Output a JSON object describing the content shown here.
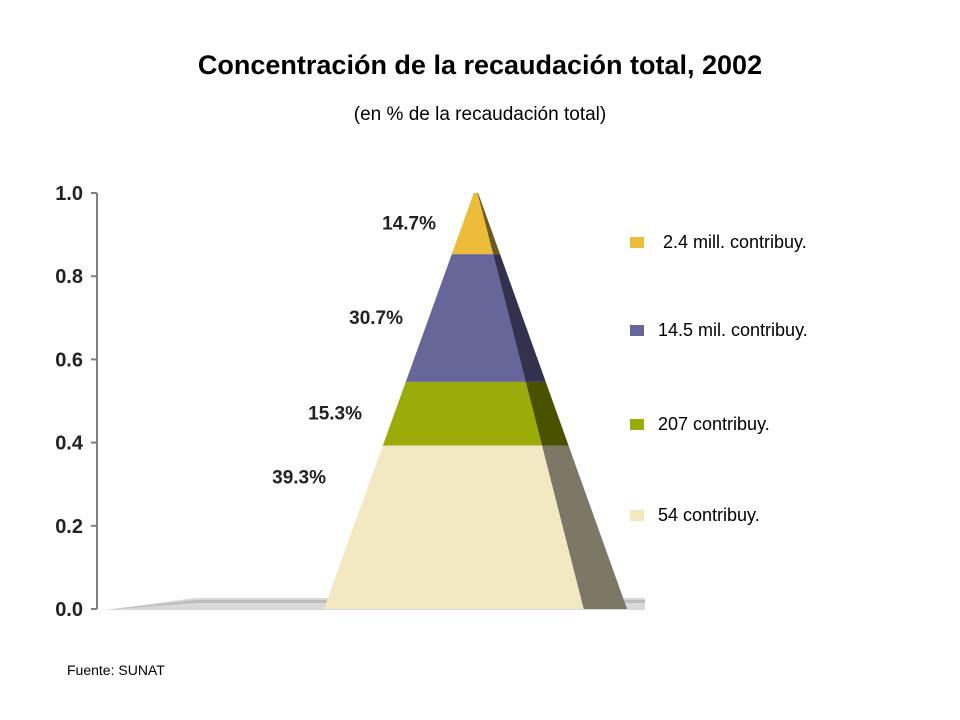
{
  "title": "Concentración de la recaudación total, 2002",
  "subtitle": "(en % de la recaudación total)",
  "source": "Fuente: SUNAT",
  "chart_data": {
    "type": "pyramid",
    "ylim": [
      0.0,
      1.0
    ],
    "yticks": [
      "0.0",
      "0.2",
      "0.4",
      "0.6",
      "0.8",
      "1.0"
    ],
    "legend_position": "right",
    "segments": [
      {
        "label": "39.3%",
        "value": 39.3,
        "legend": "54 contribuy.",
        "color": "#f2e8c2",
        "side": "#7d7765"
      },
      {
        "label": "15.3%",
        "value": 15.3,
        "legend": "207 contribuy.",
        "color": "#9aab0a",
        "side": "#4a5200"
      },
      {
        "label": "30.7%",
        "value": 30.7,
        "legend": "14.5 mil. contribuy.",
        "color": "#666699",
        "side": "#32324e"
      },
      {
        "label": "14.7%",
        "value": 14.7,
        "legend": "2.4 mill. contribuy.",
        "color": "#ecbc3a",
        "side": "#6e5a1e"
      }
    ]
  }
}
